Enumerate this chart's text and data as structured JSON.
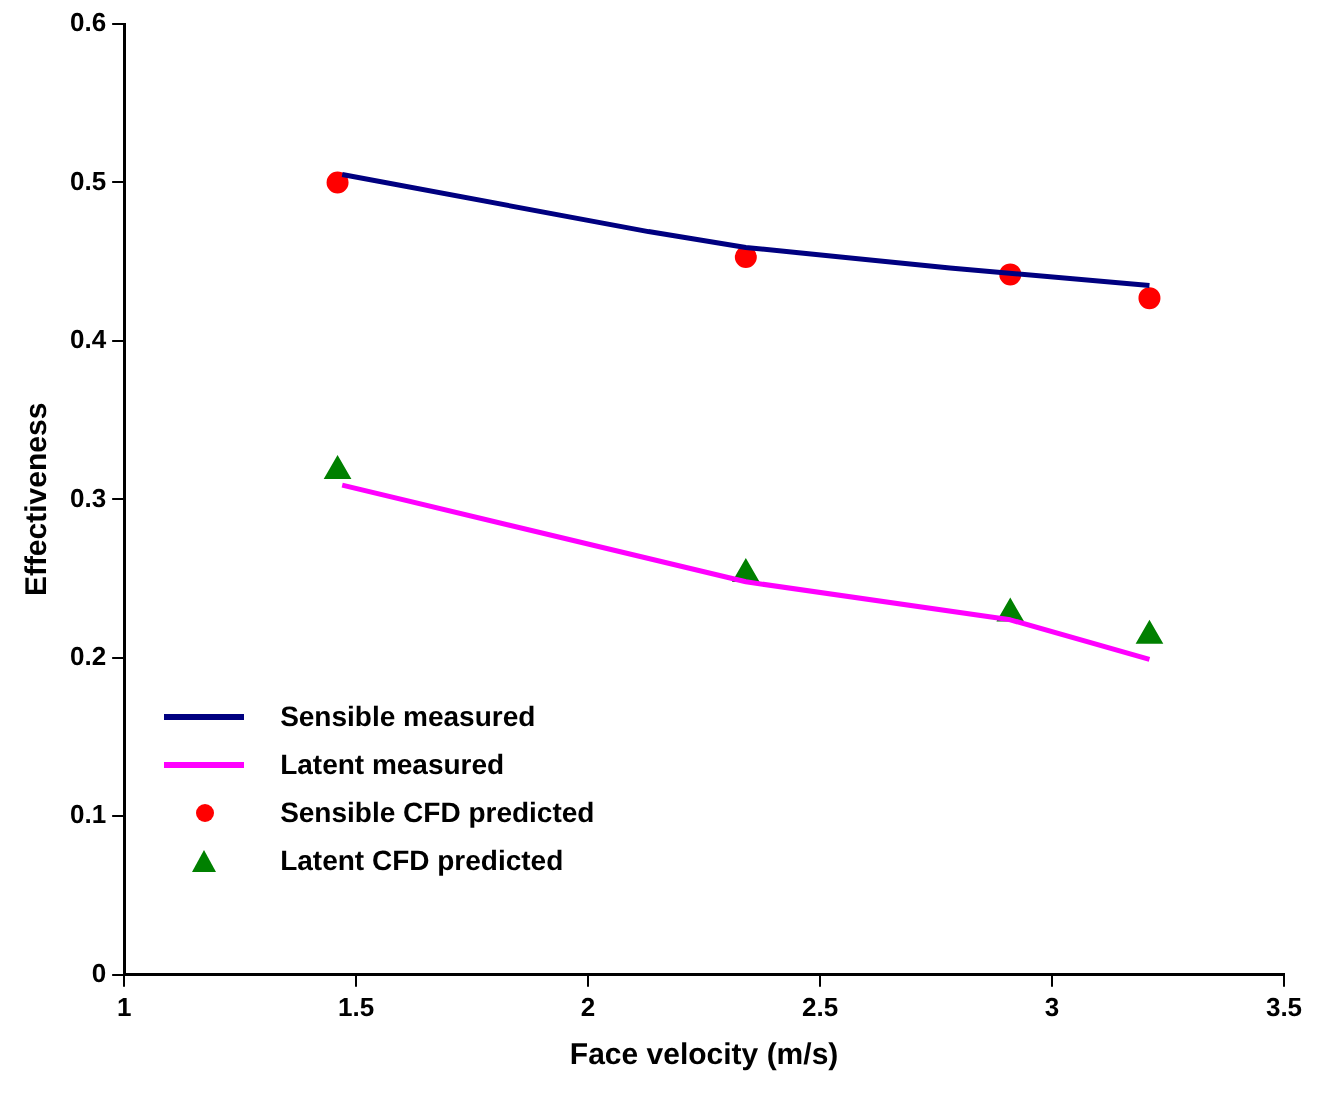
{
  "chart_data": {
    "type": "line",
    "xlabel": "Face velocity (m/s)",
    "ylabel": "Effectiveness",
    "xlim": [
      1,
      3.5
    ],
    "xticks": [
      1,
      1.5,
      2,
      2.5,
      3,
      3.5
    ],
    "ylim": [
      0,
      0.6
    ],
    "yticks": [
      0,
      0.1,
      0.2,
      0.3,
      0.4,
      0.5,
      0.6
    ],
    "grid": false,
    "legend": "bottom left",
    "series": [
      {
        "name": "Sensible measured",
        "color": "#000080",
        "marker": "none",
        "x": [
          1.47,
          2.13,
          2.34,
          2.78,
          3.21
        ],
        "values": [
          0.505,
          0.469,
          0.459,
          0.446,
          0.435
        ]
      },
      {
        "name": "Latent measured",
        "color": "#ff00ff",
        "marker": "none",
        "x": [
          1.47,
          2.34,
          2.91,
          3.21
        ],
        "values": [
          0.309,
          0.248,
          0.224,
          0.199
        ]
      },
      {
        "name": "Sensible CFD predicted",
        "type": "scatter",
        "color": "#ff0000",
        "marker": "circle",
        "x": [
          1.46,
          2.34,
          2.91,
          3.21
        ],
        "values": [
          0.5,
          0.453,
          0.442,
          0.427
        ]
      },
      {
        "name": "Latent CFD predicted",
        "type": "scatter",
        "color": "#008000",
        "marker": "triangle",
        "x": [
          1.46,
          2.34,
          2.91,
          3.21
        ],
        "values": [
          0.318,
          0.253,
          0.228,
          0.214
        ]
      }
    ]
  }
}
